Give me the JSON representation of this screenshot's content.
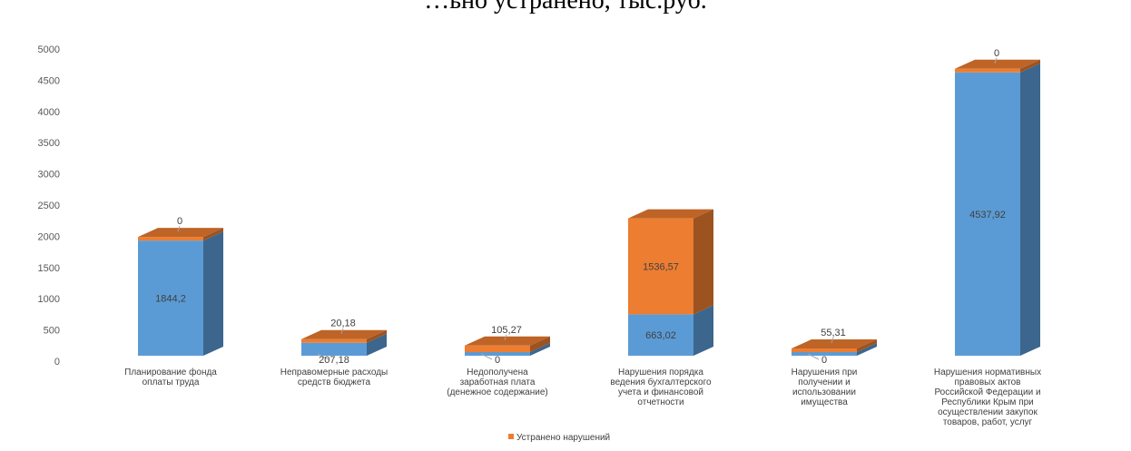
{
  "chart_data": {
    "type": "bar",
    "stacked": true,
    "three_d": true,
    "title": "…ьно устранено, тыс.руб.",
    "ylim": [
      0,
      5000
    ],
    "yticks": [
      0,
      500,
      1000,
      1500,
      2000,
      2500,
      3000,
      3500,
      4000,
      4500,
      5000
    ],
    "grid": false,
    "legend_position": "bottom",
    "categories": [
      [
        "Планирование фонда",
        "оплаты труда"
      ],
      [
        "Неправомерные расходы",
        "средств бюджета"
      ],
      [
        "Недополучена",
        "заработная плата",
        "(денежное содержание)"
      ],
      [
        "Нарушения порядка",
        "ведения бухгалтерского",
        "учета и финансовой",
        "отчетности"
      ],
      [
        "Нарушения при",
        "получении и",
        "использовании",
        "имущества"
      ],
      [
        "Нарушения нормативных",
        "правовых актов",
        "Российской Федерации и",
        "Республики Крым при",
        "осуществлении закупок",
        "товаров, работ, услуг"
      ]
    ],
    "series": [
      {
        "color": "#5b9bd5",
        "values": [
          1844.2,
          207.18,
          0,
          663.02,
          0,
          4537.92
        ],
        "labels": [
          "1844,2",
          "207,18",
          "0",
          "663,02",
          "0",
          "4537,92"
        ]
      },
      {
        "name": "Устранено нарушений",
        "color": "#ed7d31",
        "values": [
          0,
          20.18,
          105.27,
          1536.57,
          55.31,
          0
        ],
        "labels": [
          "0",
          "20,18",
          "105,27",
          "1536,57",
          "55,31",
          "0"
        ]
      }
    ]
  }
}
